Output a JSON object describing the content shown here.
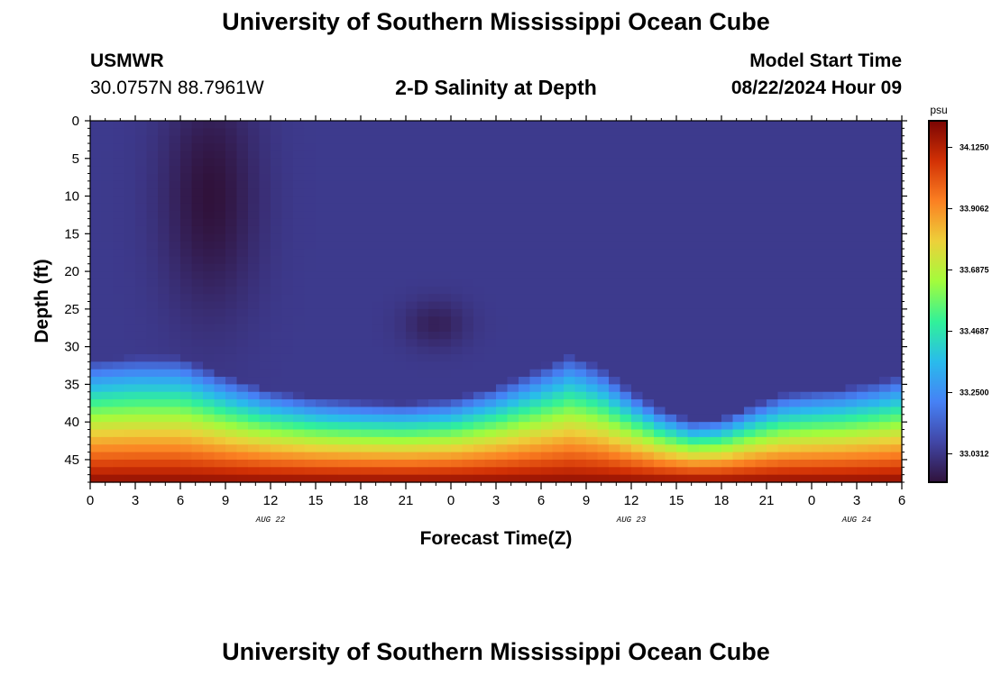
{
  "header": {
    "title": "University of Southern Mississippi Ocean Cube",
    "station": "USMWR",
    "coords": "30.0757N  88.7961W",
    "subtitle": "2-D Salinity at Depth",
    "model_label": "Model Start Time",
    "model_time": "08/22/2024 Hour 09"
  },
  "footer": {
    "title": "University of Southern Mississippi Ocean Cube"
  },
  "chart_data": {
    "type": "heatmap",
    "xlabel": "Forecast Time(Z)",
    "ylabel": "Depth (ft)",
    "x_range_hours": [
      0,
      54
    ],
    "y_range_ft": [
      0,
      48
    ],
    "x_tick_labels": [
      "0",
      "3",
      "6",
      "9",
      "12",
      "15",
      "18",
      "21",
      "0",
      "3",
      "6",
      "9",
      "12",
      "15",
      "18",
      "21",
      "0",
      "3",
      "6"
    ],
    "y_tick_labels": [
      "0",
      "5",
      "10",
      "15",
      "20",
      "25",
      "30",
      "35",
      "40",
      "45"
    ],
    "y_tick_values": [
      0,
      5,
      10,
      15,
      20,
      25,
      30,
      35,
      40,
      45
    ],
    "date_labels": [
      {
        "text": "AUG 22",
        "hour": 12
      },
      {
        "text": "AUG 23",
        "hour": 36
      },
      {
        "text": "AUG 24",
        "hour": 51
      }
    ],
    "colorbar": {
      "unit": "psu",
      "min": 32.93,
      "max": 34.22,
      "tick_labels": [
        "34.1250",
        "33.9062",
        "33.6875",
        "33.4687",
        "33.2500",
        "33.0312"
      ],
      "tick_values": [
        34.125,
        33.90625,
        33.6875,
        33.46875,
        33.25,
        33.03125
      ],
      "colors": [
        "#30123b",
        "#4146a6",
        "#4681f5",
        "#29bbec",
        "#31f199",
        "#a3fc3c",
        "#edd03a",
        "#fb8022",
        "#d23105",
        "#7a0403"
      ]
    },
    "interface_depth_ft": [
      [
        0,
        36.8
      ],
      [
        3,
        36.3
      ],
      [
        6,
        36.3
      ],
      [
        9,
        38.8
      ],
      [
        12,
        40.8
      ],
      [
        15,
        41.8
      ],
      [
        18,
        42.3
      ],
      [
        21,
        42.5
      ],
      [
        24,
        42.0
      ],
      [
        27,
        40.3
      ],
      [
        30,
        37.8
      ],
      [
        32,
        36.0
      ],
      [
        34,
        37.8
      ],
      [
        36,
        40.8
      ],
      [
        38,
        43.3
      ],
      [
        40,
        44.8
      ],
      [
        42,
        44.5
      ],
      [
        44,
        42.8
      ],
      [
        46,
        41.3
      ],
      [
        48,
        40.8
      ],
      [
        50,
        40.5
      ],
      [
        52,
        39.8
      ],
      [
        54,
        38.8
      ]
    ],
    "upper_layer_salinity_psu": 33.04,
    "bottom_salinity_psu": 34.19,
    "low_salinity_pockets": [
      {
        "hour_center": 8,
        "depth_center_ft": 10,
        "hour_spread": 3,
        "depth_spread_ft": 14,
        "salinity_psu": 32.93
      },
      {
        "hour_center": 23,
        "depth_center_ft": 27,
        "hour_spread": 2,
        "depth_spread_ft": 3,
        "salinity_psu": 32.97
      }
    ]
  }
}
